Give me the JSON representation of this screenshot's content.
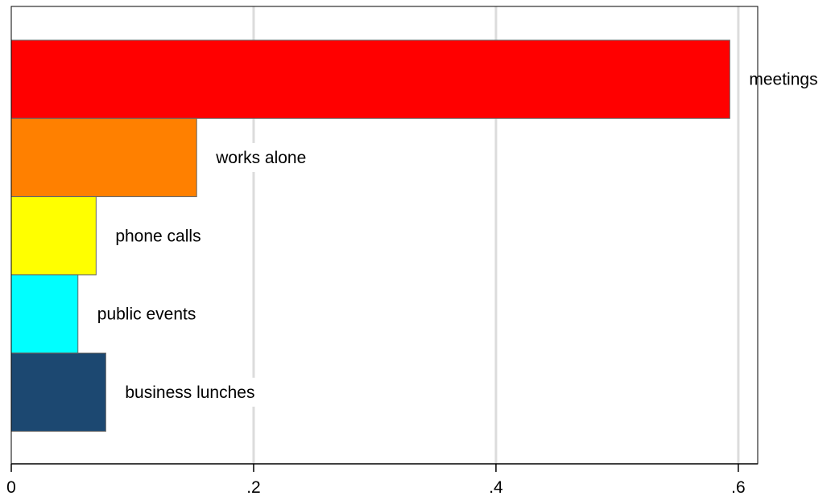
{
  "chart_data": {
    "type": "bar",
    "orientation": "horizontal",
    "title": "",
    "xlabel": "",
    "ylabel": "",
    "categories": [
      "meetings",
      "works alone",
      "phone calls",
      "public events",
      "business lunches"
    ],
    "values": [
      0.593,
      0.153,
      0.07,
      0.055,
      0.078
    ],
    "colors": [
      "#ff0000",
      "#ff8000",
      "#ffff00",
      "#00ffff",
      "#1c4871"
    ],
    "xlim": [
      0,
      0.616
    ],
    "xticks": [
      0,
      0.2,
      0.4,
      0.6
    ],
    "xtick_labels": [
      "0",
      ".2",
      ".4",
      ".6"
    ],
    "grid": true,
    "legend": "none"
  }
}
